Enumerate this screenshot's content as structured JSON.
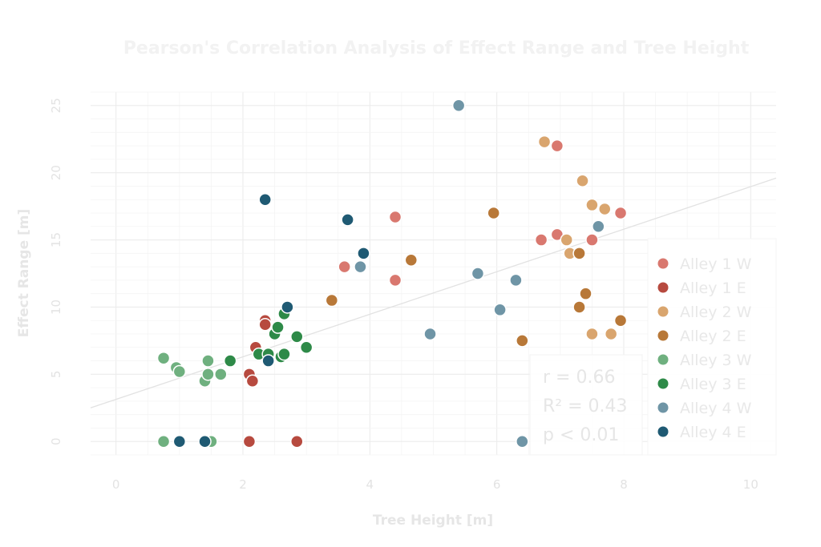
{
  "chart_data": {
    "type": "scatter",
    "title": "Pearson's Correlation Analysis of Effect Range and Tree Height",
    "xlabel": "Tree Height [m]",
    "ylabel": "Effect Range [m]",
    "xlim": [
      -0.4,
      10.4
    ],
    "ylim": [
      -1,
      26
    ],
    "x_ticks": [
      0,
      2,
      4,
      6,
      8,
      10
    ],
    "y_ticks": [
      0,
      5,
      10,
      15,
      20,
      25
    ],
    "grid": true,
    "legend_position": "bottom-right",
    "trendline": {
      "x": [
        -0.4,
        10.4
      ],
      "y": [
        2.5,
        19.6
      ]
    },
    "stats": [
      "r = 0.66",
      "R² = 0.43",
      "p < 0.01"
    ],
    "series": [
      {
        "name": "Alley 1 W",
        "color": "#d9786f",
        "points": [
          [
            3.6,
            13
          ],
          [
            4.4,
            12
          ],
          [
            4.4,
            16.7
          ],
          [
            6.7,
            15
          ],
          [
            6.95,
            15.4
          ],
          [
            6.95,
            22
          ],
          [
            7.5,
            15
          ],
          [
            7.95,
            17
          ]
        ]
      },
      {
        "name": "Alley 1 E",
        "color": "#b74a3f",
        "points": [
          [
            2.1,
            5
          ],
          [
            2.15,
            4.5
          ],
          [
            2.2,
            7
          ],
          [
            2.35,
            9
          ],
          [
            2.35,
            8.7
          ],
          [
            2.1,
            0
          ],
          [
            2.85,
            0
          ]
        ]
      },
      {
        "name": "Alley 2 W",
        "color": "#d9a56e",
        "points": [
          [
            6.75,
            22.3
          ],
          [
            7.1,
            15
          ],
          [
            7.15,
            14
          ],
          [
            7.35,
            19.4
          ],
          [
            7.5,
            17.6
          ],
          [
            7.7,
            17.3
          ],
          [
            7.5,
            8
          ],
          [
            7.8,
            8
          ]
        ]
      },
      {
        "name": "Alley 2 E",
        "color": "#b87838",
        "points": [
          [
            3.4,
            10.5
          ],
          [
            4.65,
            13.5
          ],
          [
            5.95,
            17
          ],
          [
            6.4,
            7.5
          ],
          [
            7.3,
            14
          ],
          [
            7.3,
            10
          ],
          [
            7.4,
            11
          ],
          [
            7.95,
            9
          ]
        ]
      },
      {
        "name": "Alley 3 W",
        "color": "#6fb07f",
        "points": [
          [
            0.75,
            6.2
          ],
          [
            0.95,
            5.5
          ],
          [
            1.0,
            5.2
          ],
          [
            1.4,
            4.5
          ],
          [
            1.45,
            5
          ],
          [
            1.45,
            6
          ],
          [
            1.65,
            5
          ],
          [
            0.75,
            0
          ],
          [
            1.5,
            0
          ]
        ]
      },
      {
        "name": "Alley 3 E",
        "color": "#2e8a48",
        "points": [
          [
            1.8,
            6
          ],
          [
            2.25,
            6.5
          ],
          [
            2.4,
            6.5
          ],
          [
            2.5,
            8
          ],
          [
            2.55,
            8.5
          ],
          [
            2.6,
            6.3
          ],
          [
            2.65,
            6.5
          ],
          [
            2.65,
            9.5
          ],
          [
            2.85,
            7.8
          ],
          [
            3.0,
            7
          ]
        ]
      },
      {
        "name": "Alley 4 W",
        "color": "#6f95a6",
        "points": [
          [
            3.85,
            13
          ],
          [
            4.95,
            8
          ],
          [
            5.4,
            25
          ],
          [
            5.7,
            12.5
          ],
          [
            6.05,
            9.8
          ],
          [
            6.3,
            12
          ],
          [
            7.6,
            16
          ],
          [
            6.4,
            0
          ]
        ]
      },
      {
        "name": "Alley 4 E",
        "color": "#1f5a73",
        "points": [
          [
            2.35,
            18
          ],
          [
            2.4,
            6
          ],
          [
            2.7,
            10
          ],
          [
            3.65,
            16.5
          ],
          [
            3.9,
            14
          ],
          [
            1.0,
            0
          ],
          [
            1.4,
            0
          ]
        ]
      }
    ]
  }
}
